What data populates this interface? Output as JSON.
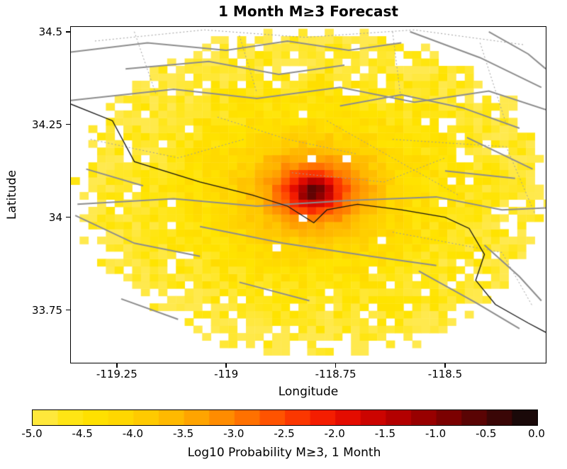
{
  "chart_data": {
    "type": "heatmap",
    "title": "1 Month M≥3 Forecast",
    "xlabel": "Longitude",
    "ylabel": "Latitude",
    "xlim": [
      -119.355,
      -118.27
    ],
    "ylim": [
      33.608,
      34.513
    ],
    "x_ticks": {
      "values": [
        -119.25,
        -119.0,
        -118.75,
        -118.5
      ],
      "labels": [
        "-119.25",
        "-119",
        "-118.75",
        "-118.5"
      ]
    },
    "y_ticks": {
      "values": [
        34.5,
        34.25,
        34.0,
        33.75
      ],
      "labels": [
        "34.5",
        "34.25",
        "34",
        "33.75"
      ]
    },
    "grid": false,
    "cell_size_deg": 0.02,
    "field": {
      "description": "Log10 probability of M>=3 earthquake in 1 month per 0.02-degree cell; radially decaying from a hotspot near Malibu/Santa Monica; white cells = below color scale",
      "center": {
        "lon": -118.8,
        "lat": 34.07
      },
      "ellipse_radius_deg": {
        "lon": 0.53,
        "lat": 0.44
      },
      "peak_log10_probability": -0.2,
      "radial_profile": [
        {
          "u": 0.0,
          "log10_p": -0.2
        },
        {
          "u": 0.04,
          "log10_p": -1.0
        },
        {
          "u": 0.09,
          "log10_p": -2.0
        },
        {
          "u": 0.14,
          "log10_p": -2.7
        },
        {
          "u": 0.2,
          "log10_p": -3.3
        },
        {
          "u": 0.3,
          "log10_p": -3.9
        },
        {
          "u": 0.45,
          "log10_p": -4.35
        },
        {
          "u": 0.65,
          "log10_p": -4.6
        },
        {
          "u": 0.85,
          "log10_p": -4.8
        },
        {
          "u": 1.0,
          "log10_p": -4.95
        }
      ],
      "noise_amplitude_log10": 0.3,
      "seed": 7
    },
    "colorbar": {
      "label": "Log10 Probability M≥3, 1 Month",
      "min": -5,
      "max": 0,
      "segments": 20,
      "ticks": [
        {
          "value": -5.0,
          "label": "-5.0"
        },
        {
          "value": -4.5,
          "label": "-4.5"
        },
        {
          "value": -4.0,
          "label": "-4.0"
        },
        {
          "value": -3.5,
          "label": "-3.5"
        },
        {
          "value": -3.0,
          "label": "-3.0"
        },
        {
          "value": -2.5,
          "label": "-2.5"
        },
        {
          "value": -2.0,
          "label": "-2.0"
        },
        {
          "value": -1.5,
          "label": "-1.5"
        },
        {
          "value": -1.0,
          "label": "-1.0"
        },
        {
          "value": -0.5,
          "label": "-0.5"
        },
        {
          "value": 0.0,
          "label": "0.0"
        }
      ],
      "colormap_stops": [
        {
          "value": -5.0,
          "color": "#ffe94e"
        },
        {
          "value": -4.5,
          "color": "#ffe400"
        },
        {
          "value": -4.0,
          "color": "#ffd200"
        },
        {
          "value": -3.5,
          "color": "#ffb000"
        },
        {
          "value": -3.0,
          "color": "#ff8000"
        },
        {
          "value": -2.5,
          "color": "#ff4400"
        },
        {
          "value": -2.0,
          "color": "#f01000"
        },
        {
          "value": -1.5,
          "color": "#c00000"
        },
        {
          "value": -1.0,
          "color": "#8b0000"
        },
        {
          "value": -0.5,
          "color": "#4a0505"
        },
        {
          "value": 0.0,
          "color": "#0a0a0a"
        }
      ]
    },
    "overlays": {
      "style": {
        "solid_color": "#8c8c8c",
        "solid_width": 2,
        "dotted_color": "#9c9c9c",
        "dotted_width": 1,
        "coast_color": "#141414",
        "coast_width": 1.3
      },
      "fault_lines_solid": [
        {
          "points": [
            [
              -119.355,
              34.445
            ],
            [
              -119.18,
              34.47
            ],
            [
              -119.0,
              34.45
            ],
            [
              -118.86,
              34.475
            ],
            [
              -118.72,
              34.45
            ],
            [
              -118.6,
              34.47
            ]
          ]
        },
        {
          "points": [
            [
              -118.58,
              34.5
            ],
            [
              -118.42,
              34.43
            ],
            [
              -118.28,
              34.35
            ]
          ]
        },
        {
          "points": [
            [
              -119.355,
              34.315
            ],
            [
              -119.12,
              34.345
            ],
            [
              -118.93,
              34.32
            ],
            [
              -118.74,
              34.35
            ],
            [
              -118.57,
              34.31
            ],
            [
              -118.4,
              34.34
            ],
            [
              -118.27,
              34.29
            ]
          ]
        },
        {
          "points": [
            [
              -119.23,
              34.4
            ],
            [
              -119.04,
              34.42
            ],
            [
              -118.88,
              34.385
            ],
            [
              -118.73,
              34.41
            ]
          ]
        },
        {
          "points": [
            [
              -118.74,
              34.3
            ],
            [
              -118.6,
              34.33
            ],
            [
              -118.46,
              34.295
            ],
            [
              -118.33,
              34.24
            ]
          ]
        },
        {
          "points": [
            [
              -118.45,
              34.215
            ],
            [
              -118.3,
              34.13
            ]
          ]
        },
        {
          "points": [
            [
              -119.34,
              34.035
            ],
            [
              -119.12,
              34.05
            ],
            [
              -118.93,
              34.03
            ],
            [
              -118.72,
              34.045
            ],
            [
              -118.52,
              34.055
            ],
            [
              -118.37,
              34.02
            ],
            [
              -118.27,
              34.025
            ]
          ]
        },
        {
          "points": [
            [
              -118.5,
              34.125
            ],
            [
              -118.34,
              34.105
            ]
          ]
        },
        {
          "points": [
            [
              -119.345,
              34.005
            ],
            [
              -119.21,
              33.93
            ],
            [
              -119.06,
              33.895
            ]
          ]
        },
        {
          "points": [
            [
              -119.06,
              33.975
            ],
            [
              -118.87,
              33.93
            ],
            [
              -118.67,
              33.895
            ],
            [
              -118.52,
              33.87
            ]
          ]
        },
        {
          "points": [
            [
              -118.97,
              33.825
            ],
            [
              -118.81,
              33.775
            ]
          ]
        },
        {
          "points": [
            [
              -118.56,
              33.855
            ],
            [
              -118.43,
              33.77
            ],
            [
              -118.33,
              33.7
            ]
          ]
        },
        {
          "points": [
            [
              -118.41,
              33.925
            ],
            [
              -118.33,
              33.84
            ],
            [
              -118.28,
              33.775
            ]
          ]
        },
        {
          "points": [
            [
              -119.24,
              33.78
            ],
            [
              -119.11,
              33.725
            ]
          ]
        },
        {
          "points": [
            [
              -119.32,
              34.13
            ],
            [
              -119.19,
              34.085
            ]
          ]
        },
        {
          "points": [
            [
              -118.4,
              34.5
            ],
            [
              -118.31,
              34.44
            ],
            [
              -118.27,
              34.4
            ]
          ]
        }
      ],
      "fault_sections_dotted": [
        {
          "points": [
            [
              -119.3,
              34.475
            ],
            [
              -119.05,
              34.505
            ],
            [
              -118.82,
              34.485
            ],
            [
              -118.57,
              34.505
            ],
            [
              -118.32,
              34.465
            ]
          ]
        },
        {
          "points": [
            [
              -119.21,
              34.5
            ],
            [
              -119.16,
              34.33
            ]
          ]
        },
        {
          "points": [
            [
              -118.97,
              34.49
            ],
            [
              -118.93,
              34.335
            ]
          ]
        },
        {
          "points": [
            [
              -118.62,
              34.5
            ],
            [
              -118.6,
              34.31
            ]
          ]
        },
        {
          "points": [
            [
              -118.42,
              34.47
            ],
            [
              -118.36,
              34.25
            ]
          ]
        },
        {
          "points": [
            [
              -118.62,
              34.21
            ],
            [
              -118.36,
              34.19
            ],
            [
              -118.295,
              34.01
            ]
          ]
        },
        {
          "points": [
            [
              -118.62,
              33.96
            ],
            [
              -118.37,
              33.905
            ],
            [
              -118.3,
              33.76
            ]
          ]
        },
        {
          "points": [
            [
              -118.77,
              34.26
            ],
            [
              -118.47,
              34.06
            ]
          ]
        },
        {
          "points": [
            [
              -119.31,
              34.21
            ],
            [
              -119.11,
              34.16
            ],
            [
              -118.96,
              34.21
            ]
          ]
        },
        {
          "points": [
            [
              -119.02,
              34.27
            ],
            [
              -118.86,
              34.21
            ],
            [
              -118.7,
              34.17
            ]
          ]
        },
        {
          "points": [
            [
              -118.85,
              34.12
            ],
            [
              -118.64,
              34.095
            ],
            [
              -118.5,
              34.16
            ]
          ]
        }
      ],
      "coastline": {
        "points": [
          [
            -119.355,
            34.305
          ],
          [
            -119.26,
            34.26
          ],
          [
            -119.21,
            34.15
          ],
          [
            -119.06,
            34.095
          ],
          [
            -118.94,
            34.06
          ],
          [
            -118.86,
            34.03
          ],
          [
            -118.8,
            33.985
          ],
          [
            -118.77,
            34.02
          ],
          [
            -118.7,
            34.035
          ],
          [
            -118.6,
            34.02
          ],
          [
            -118.5,
            34.0
          ],
          [
            -118.445,
            33.97
          ],
          [
            -118.41,
            33.9
          ],
          [
            -118.43,
            33.83
          ],
          [
            -118.385,
            33.765
          ],
          [
            -118.31,
            33.715
          ],
          [
            -118.27,
            33.69
          ]
        ]
      }
    }
  }
}
